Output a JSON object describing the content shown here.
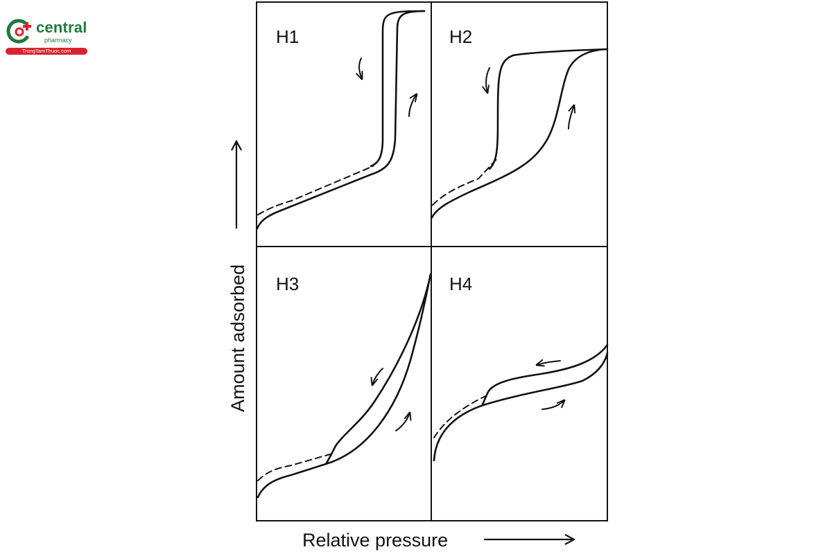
{
  "logo": {
    "brand": "central",
    "sub": "pharmacy",
    "url": "TrungTamThuoc.com",
    "colors": {
      "green": "#1f7a3c",
      "red": "#d9232d"
    }
  },
  "axes": {
    "y_label": "Amount adsorbed",
    "x_label": "Relative pressure"
  },
  "panels": [
    {
      "id": "H1",
      "label": "H1"
    },
    {
      "id": "H2",
      "label": "H2"
    },
    {
      "id": "H3",
      "label": "H3"
    },
    {
      "id": "H4",
      "label": "H4"
    }
  ]
}
